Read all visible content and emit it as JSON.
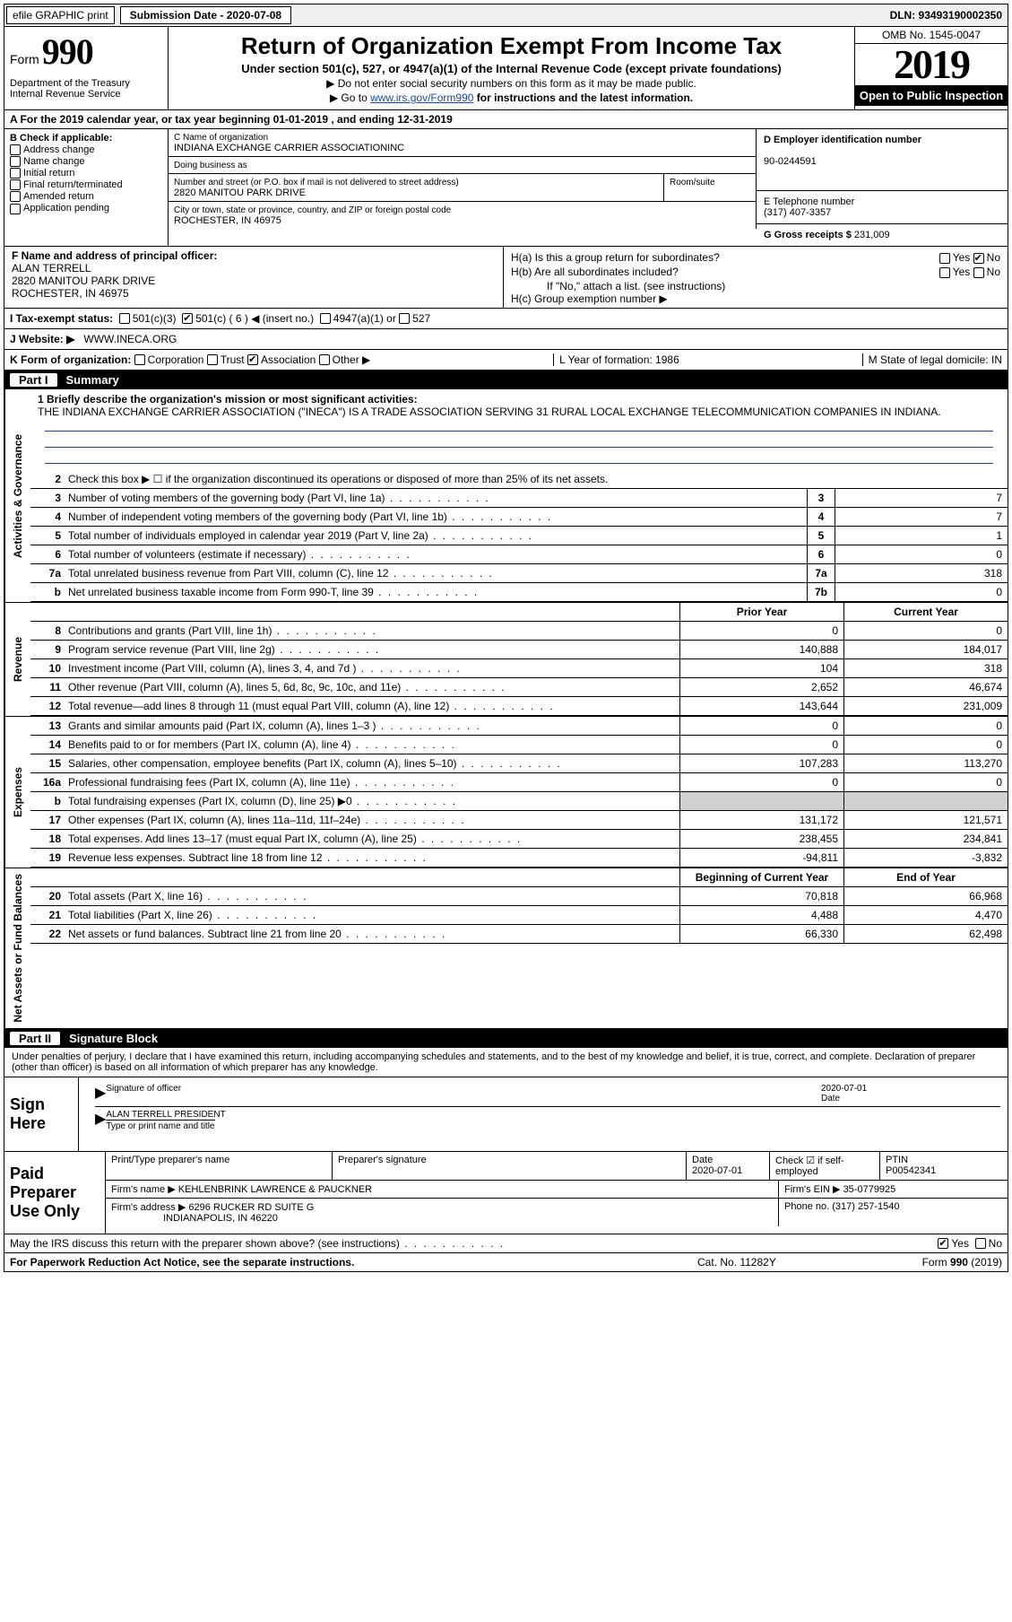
{
  "top_bar": {
    "efile": "efile GRAPHIC print",
    "submission_label": "Submission Date - 2020-07-08",
    "dln": "DLN: 93493190002350"
  },
  "header": {
    "form_label": "Form",
    "form_number": "990",
    "dept": "Department of the Treasury\nInternal Revenue Service",
    "title": "Return of Organization Exempt From Income Tax",
    "subtitle": "Under section 501(c), 527, or 4947(a)(1) of the Internal Revenue Code (except private foundations)",
    "line1": "▶ Do not enter social security numbers on this form as it may be made public.",
    "line2_pre": "▶ Go to ",
    "line2_link": "www.irs.gov/Form990",
    "line2_post": " for instructions and the latest information.",
    "omb": "OMB No. 1545-0047",
    "year": "2019",
    "open_public": "Open to Public Inspection"
  },
  "line_a": "A For the 2019 calendar year, or tax year beginning 01-01-2019  , and ending 12-31-2019",
  "col_b": {
    "label": "B Check if applicable:",
    "items": [
      "Address change",
      "Name change",
      "Initial return",
      "Final return/terminated",
      "Amended return",
      "Application pending"
    ]
  },
  "col_c": {
    "name_label": "C Name of organization",
    "name": "INDIANA EXCHANGE CARRIER ASSOCIATIONINC",
    "dba_label": "Doing business as",
    "addr_label": "Number and street (or P.O. box if mail is not delivered to street address)",
    "addr": "2820 MANITOU PARK DRIVE",
    "suite_label": "Room/suite",
    "city_label": "City or town, state or province, country, and ZIP or foreign postal code",
    "city": "ROCHESTER, IN  46975"
  },
  "col_d": {
    "label": "D Employer identification number",
    "ein": "90-0244591"
  },
  "col_e": {
    "label": "E Telephone number",
    "phone": "(317) 407-3357"
  },
  "col_g": {
    "label": "G Gross receipts $",
    "value": "231,009"
  },
  "col_f": {
    "label": "F  Name and address of principal officer:",
    "name": "ALAN TERRELL",
    "addr1": "2820 MANITOU PARK DRIVE",
    "addr2": "ROCHESTER, IN  46975"
  },
  "col_h": {
    "ha": "H(a)  Is this a group return for subordinates?",
    "hb": "H(b)  Are all subordinates included?",
    "hb_note": "If \"No,\" attach a list. (see instructions)",
    "hc": "H(c)  Group exemption number ▶"
  },
  "tax_status": {
    "label": "I  Tax-exempt status:",
    "c3": "501(c)(3)",
    "c": "501(c) ( 6 ) ◀ (insert no.)",
    "a1": "4947(a)(1) or",
    "n527": "527"
  },
  "website": {
    "label": "J  Website: ▶",
    "url": "WWW.INECA.ORG"
  },
  "line_k": {
    "label": "K Form of organization:",
    "corp": "Corporation",
    "trust": "Trust",
    "assoc": "Association",
    "other": "Other ▶",
    "l_label": "L Year of formation: 1986",
    "m_label": "M State of legal domicile: IN"
  },
  "part1": {
    "num": "Part I",
    "title": "Summary"
  },
  "mission": {
    "label": "1 Briefly describe the organization's mission or most significant activities:",
    "text": "THE INDIANA EXCHANGE CARRIER ASSOCIATION (\"INECA\") IS A TRADE ASSOCIATION SERVING 31 RURAL LOCAL EXCHANGE TELECOMMUNICATION COMPANIES IN INDIANA."
  },
  "lines_gov": [
    {
      "no": "2",
      "text": "Check this box ▶ ☐  if the organization discontinued its operations or disposed of more than 25% of its net assets.",
      "box": "",
      "val": ""
    },
    {
      "no": "3",
      "text": "Number of voting members of the governing body (Part VI, line 1a)",
      "box": "3",
      "val": "7"
    },
    {
      "no": "4",
      "text": "Number of independent voting members of the governing body (Part VI, line 1b)",
      "box": "4",
      "val": "7"
    },
    {
      "no": "5",
      "text": "Total number of individuals employed in calendar year 2019 (Part V, line 2a)",
      "box": "5",
      "val": "1"
    },
    {
      "no": "6",
      "text": "Total number of volunteers (estimate if necessary)",
      "box": "6",
      "val": "0"
    },
    {
      "no": "7a",
      "text": "Total unrelated business revenue from Part VIII, column (C), line 12",
      "box": "7a",
      "val": "318"
    },
    {
      "no": "b",
      "text": "Net unrelated business taxable income from Form 990-T, line 39",
      "box": "7b",
      "val": "0"
    }
  ],
  "rev_header": {
    "prior": "Prior Year",
    "current": "Current Year"
  },
  "lines_rev": [
    {
      "no": "8",
      "text": "Contributions and grants (Part VIII, line 1h)",
      "prior": "0",
      "current": "0"
    },
    {
      "no": "9",
      "text": "Program service revenue (Part VIII, line 2g)",
      "prior": "140,888",
      "current": "184,017"
    },
    {
      "no": "10",
      "text": "Investment income (Part VIII, column (A), lines 3, 4, and 7d )",
      "prior": "104",
      "current": "318"
    },
    {
      "no": "11",
      "text": "Other revenue (Part VIII, column (A), lines 5, 6d, 8c, 9c, 10c, and 11e)",
      "prior": "2,652",
      "current": "46,674"
    },
    {
      "no": "12",
      "text": "Total revenue—add lines 8 through 11 (must equal Part VIII, column (A), line 12)",
      "prior": "143,644",
      "current": "231,009"
    }
  ],
  "lines_exp": [
    {
      "no": "13",
      "text": "Grants and similar amounts paid (Part IX, column (A), lines 1–3 )",
      "prior": "0",
      "current": "0"
    },
    {
      "no": "14",
      "text": "Benefits paid to or for members (Part IX, column (A), line 4)",
      "prior": "0",
      "current": "0"
    },
    {
      "no": "15",
      "text": "Salaries, other compensation, employee benefits (Part IX, column (A), lines 5–10)",
      "prior": "107,283",
      "current": "113,270"
    },
    {
      "no": "16a",
      "text": "Professional fundraising fees (Part IX, column (A), line 11e)",
      "prior": "0",
      "current": "0"
    },
    {
      "no": "b",
      "text": "Total fundraising expenses (Part IX, column (D), line 25) ▶0",
      "prior": "",
      "current": "",
      "shaded": true
    },
    {
      "no": "17",
      "text": "Other expenses (Part IX, column (A), lines 11a–11d, 11f–24e)",
      "prior": "131,172",
      "current": "121,571"
    },
    {
      "no": "18",
      "text": "Total expenses. Add lines 13–17 (must equal Part IX, column (A), line 25)",
      "prior": "238,455",
      "current": "234,841"
    },
    {
      "no": "19",
      "text": "Revenue less expenses. Subtract line 18 from line 12",
      "prior": "-94,811",
      "current": "-3,832"
    }
  ],
  "net_header": {
    "prior": "Beginning of Current Year",
    "current": "End of Year"
  },
  "lines_net": [
    {
      "no": "20",
      "text": "Total assets (Part X, line 16)",
      "prior": "70,818",
      "current": "66,968"
    },
    {
      "no": "21",
      "text": "Total liabilities (Part X, line 26)",
      "prior": "4,488",
      "current": "4,470"
    },
    {
      "no": "22",
      "text": "Net assets or fund balances. Subtract line 21 from line 20",
      "prior": "66,330",
      "current": "62,498"
    }
  ],
  "side_labels": {
    "gov": "Activities & Governance",
    "rev": "Revenue",
    "exp": "Expenses",
    "net": "Net Assets or Fund Balances"
  },
  "part2": {
    "num": "Part II",
    "title": "Signature Block"
  },
  "sig_declaration": "Under penalties of perjury, I declare that I have examined this return, including accompanying schedules and statements, and to the best of my knowledge and belief, it is true, correct, and complete. Declaration of preparer (other than officer) is based on all information of which preparer has any knowledge.",
  "sign": {
    "label": "Sign Here",
    "sig_of_officer": "Signature of officer",
    "date": "2020-07-01",
    "date_label": "Date",
    "name": "ALAN TERRELL PRESIDENT",
    "name_label": "Type or print name and title"
  },
  "preparer": {
    "label": "Paid Preparer Use Only",
    "h_name": "Print/Type preparer's name",
    "h_sig": "Preparer's signature",
    "h_date": "Date",
    "date": "2020-07-01",
    "check_label": "Check ☑ if self-employed",
    "ptin_label": "PTIN",
    "ptin": "P00542341",
    "firm_name_label": "Firm's name    ▶",
    "firm_name": "KEHLENBRINK LAWRENCE & PAUCKNER",
    "firm_ein_label": "Firm's EIN ▶",
    "firm_ein": "35-0779925",
    "firm_addr_label": "Firm's address ▶",
    "firm_addr1": "6296 RUCKER RD SUITE G",
    "firm_addr2": "INDIANAPOLIS, IN  46220",
    "phone_label": "Phone no.",
    "phone": "(317) 257-1540"
  },
  "discuss": "May the IRS discuss this return with the preparer shown above? (see instructions)",
  "footer": {
    "left": "For Paperwork Reduction Act Notice, see the separate instructions.",
    "cat": "Cat. No. 11282Y",
    "form": "Form 990 (2019)"
  }
}
